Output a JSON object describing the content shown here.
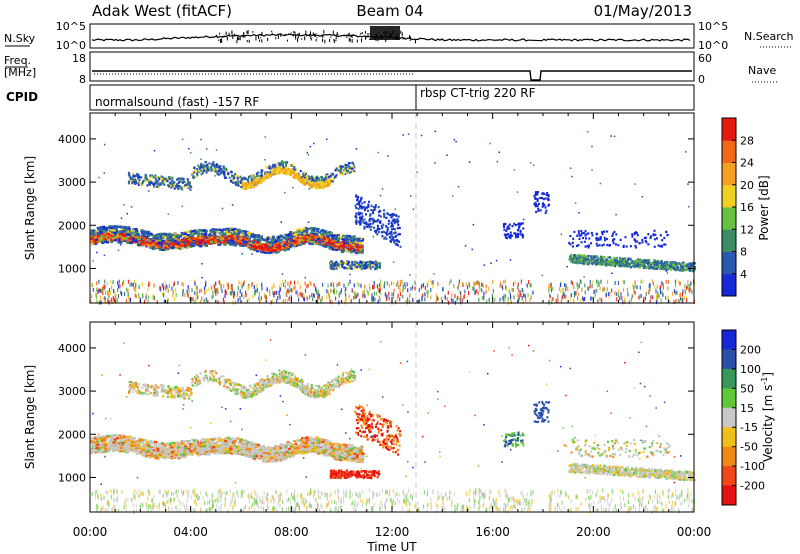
{
  "header": {
    "radar": "Adak West (fitACF)",
    "beam": "Beam 04",
    "date": "01/May/2013"
  },
  "noise_panel": {
    "left_label": "N.Sky",
    "right_label": "N.Search",
    "ticks_left": [
      "10^5",
      "10^0"
    ],
    "ticks_right": [
      "10^5",
      "10^0"
    ]
  },
  "freq_panel": {
    "left_label_1": "Freq.",
    "left_label_2": "[MHz]",
    "right_label": "Nave",
    "ticks_left": [
      "18",
      "8"
    ],
    "ticks_right": [
      "60",
      "0"
    ]
  },
  "cpid_panel": {
    "label": "CPID",
    "programs": [
      "normalsound (fast) -157 RF",
      "rbsp CT-trig 220 RF"
    ]
  },
  "chart_data": [
    {
      "type": "heatmap",
      "quantity": "Power",
      "ylabel": "Slant Range [km]",
      "xlabel": "Time UT",
      "x_ticks": [
        "00:00",
        "04:00",
        "08:00",
        "12:00",
        "16:00",
        "20:00",
        "00:00"
      ],
      "y_ticks": [
        "1000",
        "2000",
        "3000",
        "4000"
      ],
      "ylim": [
        200,
        4600
      ],
      "colorbar_label": "Power [dB]",
      "colorbar_ticks": [
        "4",
        "8",
        "12",
        "16",
        "20",
        "24",
        "28"
      ],
      "colorbar_colors": [
        "#1428d8",
        "#2a58b0",
        "#3c8c64",
        "#68c040",
        "#f0d020",
        "#f5a020",
        "#f06818",
        "#e81810"
      ]
    },
    {
      "type": "heatmap",
      "quantity": "Velocity",
      "ylabel": "Slant Range [km]",
      "xlabel": "Time UT",
      "x_ticks": [
        "00:00",
        "04:00",
        "08:00",
        "12:00",
        "16:00",
        "20:00",
        "00:00"
      ],
      "y_ticks": [
        "1000",
        "2000",
        "3000",
        "4000"
      ],
      "ylim": [
        200,
        4600
      ],
      "colorbar_label": "Velocity [m s",
      "colorbar_label_sup": "-1",
      "colorbar_label_end": "]",
      "colorbar_ticks": [
        "200",
        "100",
        "50",
        "15",
        "-15",
        "-50",
        "-100",
        "-200"
      ],
      "colorbar_colors": [
        "#1428d8",
        "#2850a8",
        "#38985c",
        "#60c838",
        "#c8c8c8",
        "#f0c018",
        "#f08818",
        "#f04818",
        "#e81010"
      ]
    }
  ]
}
